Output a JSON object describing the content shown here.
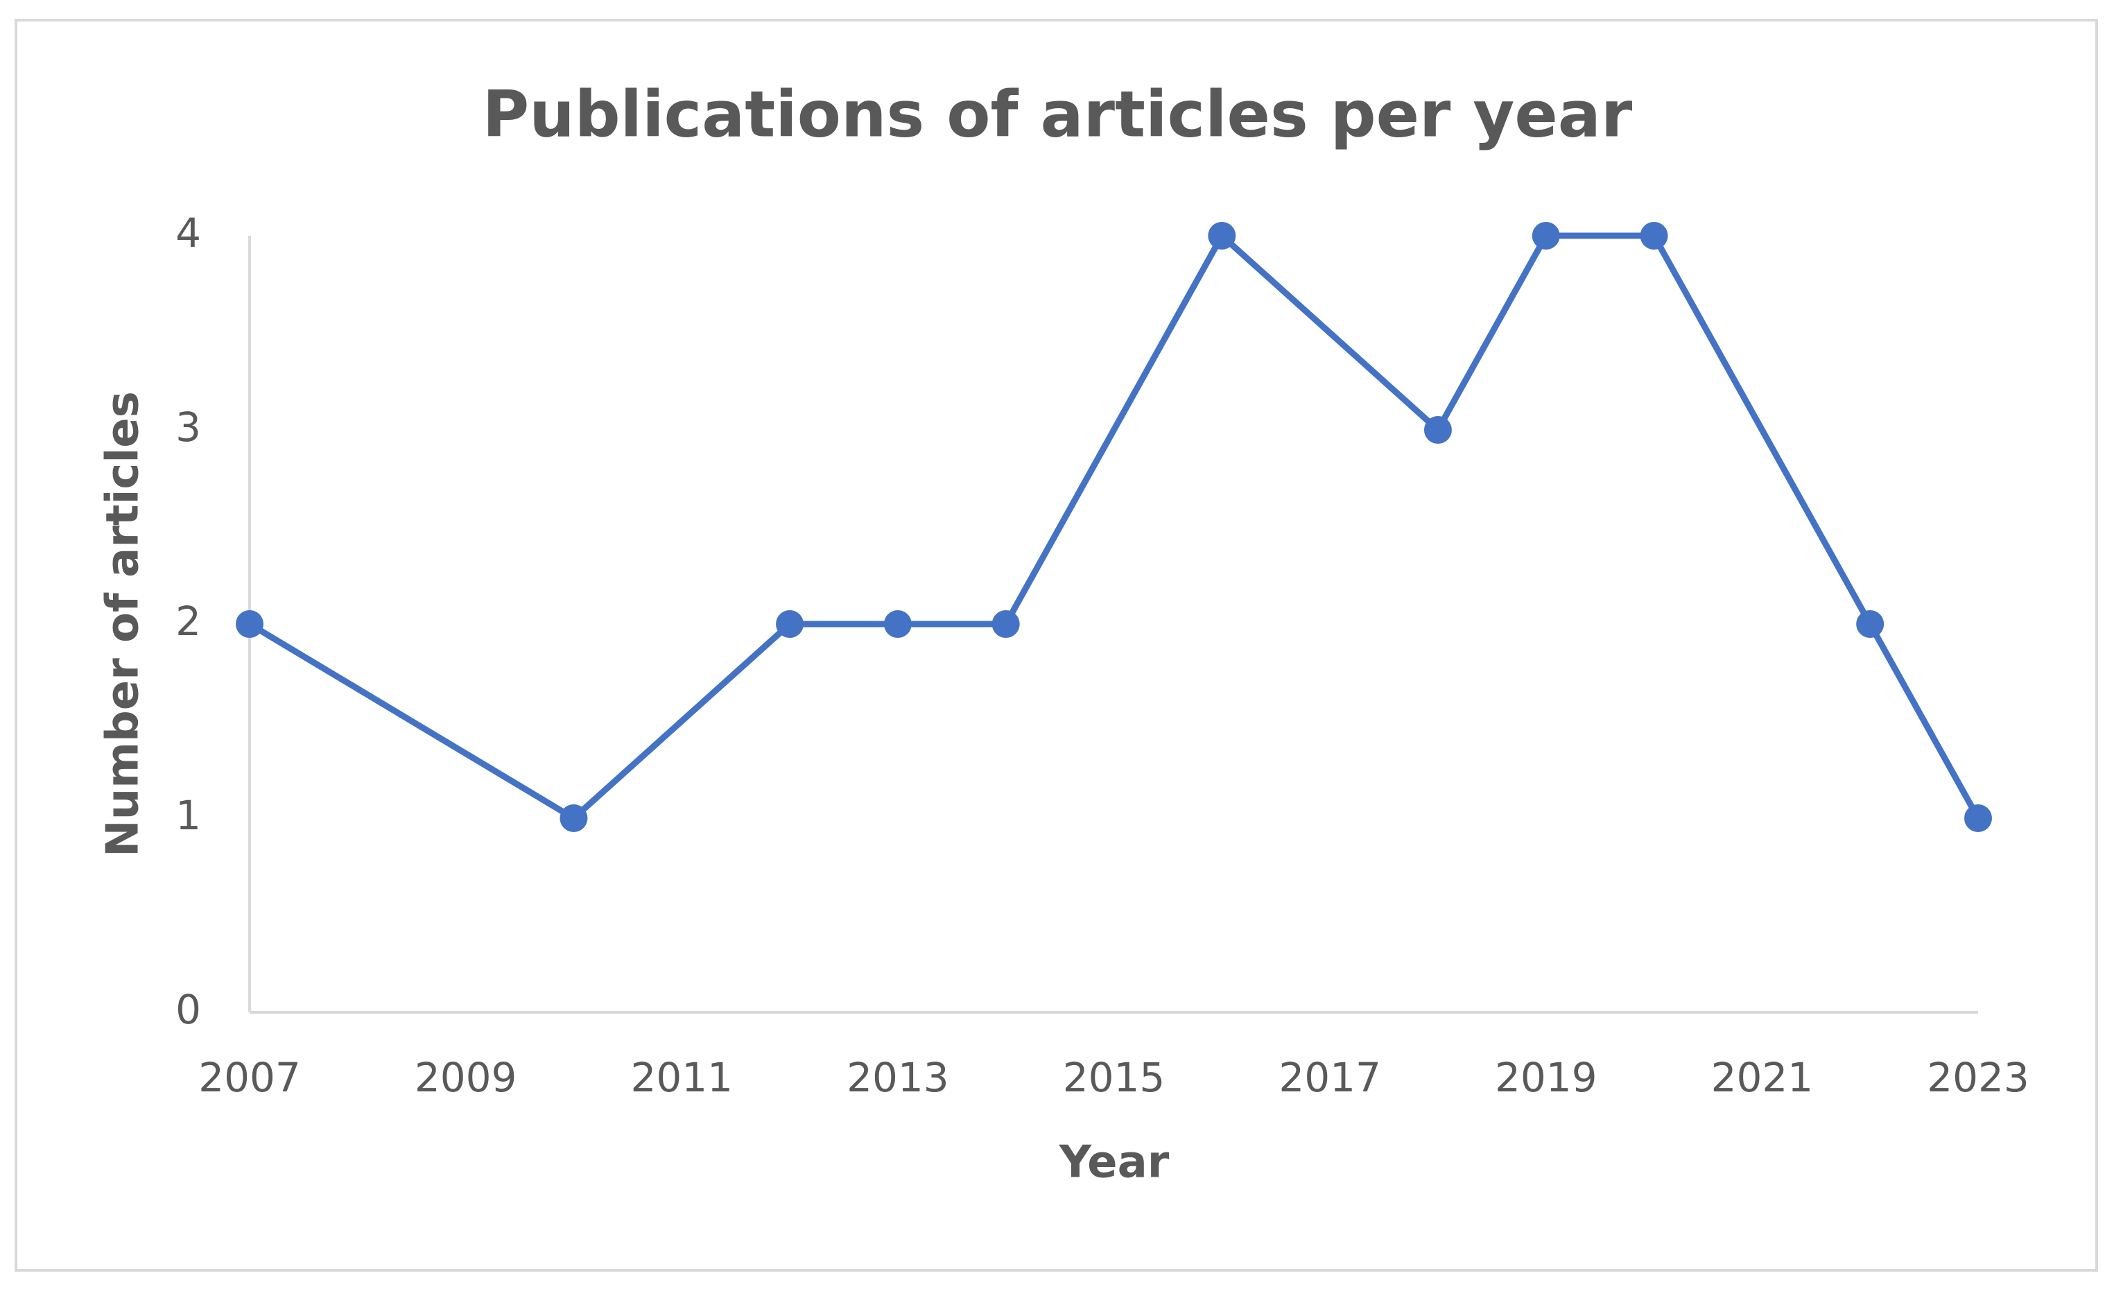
{
  "chart_data": {
    "type": "line",
    "title": "Publications of articles per year",
    "x_label": "Year",
    "y_label": "Number of articles",
    "x": [
      2007,
      2010,
      2012,
      2013,
      2014,
      2016,
      2018,
      2019,
      2020,
      2022,
      2023
    ],
    "series": [
      {
        "name": "Number of articles",
        "color": "#4472c4",
        "values": [
          2,
          1,
          2,
          2,
          2,
          4,
          3,
          4,
          4,
          2,
          1
        ]
      }
    ],
    "xlim": [
      2007,
      2023
    ],
    "xticks": [
      2007,
      2009,
      2011,
      2013,
      2015,
      2017,
      2019,
      2021,
      2023
    ],
    "ylim": [
      0,
      4
    ],
    "yticks": [
      0,
      1,
      2,
      3,
      4
    ],
    "grid": false
  }
}
